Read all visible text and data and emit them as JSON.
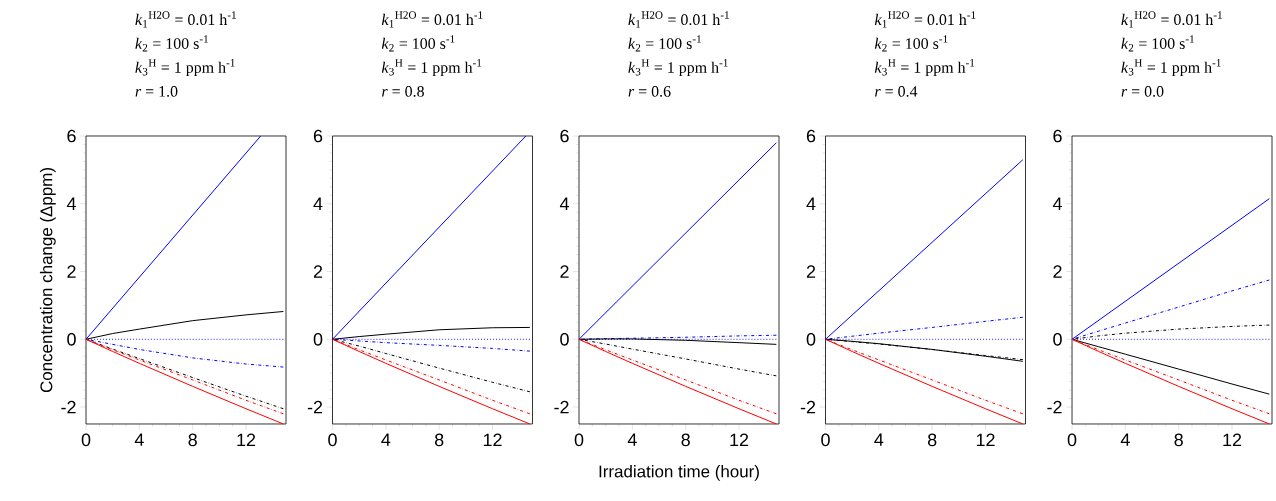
{
  "chart_data": [
    {
      "type": "line",
      "title": "*r* = 1.0",
      "annotations": [
        "*k*$_{1}$$^{H2O}$ = 0.01 h$^{-1}$",
        "*k*$_{2}$ = 100 s$^{-1}$",
        "*k*$_{3}$$^{H}$ = 1 ppm h$^{-1}$"
      ],
      "ylabel": "Concentration change (Δppm)",
      "xlim": [
        0,
        15
      ],
      "ylim": [
        -2.5,
        6
      ],
      "xticks": [
        0,
        4,
        8,
        12
      ],
      "yticks": [
        -2,
        0,
        2,
        4,
        6
      ],
      "x": [
        0,
        2,
        4,
        8,
        12,
        14.8
      ],
      "series": [
        {
          "color": "#0000ff",
          "line_style": "solid",
          "x": [
            0,
            13.1
          ],
          "values": [
            0,
            6
          ]
        },
        {
          "color": "#2222ee",
          "line_style": "dotted",
          "x": [
            0,
            14.8
          ],
          "values": [
            0,
            0
          ]
        },
        {
          "color": "#0000ff",
          "line_style": "dashdot",
          "values": [
            0,
            -0.15,
            -0.3,
            -0.55,
            -0.73,
            -0.82
          ]
        },
        {
          "color": "#000000",
          "line_style": "solid",
          "values": [
            0,
            0.17,
            0.3,
            0.55,
            0.72,
            0.82
          ]
        },
        {
          "color": "#000000",
          "line_style": "dashdot",
          "values": [
            0,
            -0.29,
            -0.57,
            -1.13,
            -1.68,
            -2.05
          ]
        },
        {
          "color": "#ff0000",
          "line_style": "dashdot",
          "values": [
            0,
            -0.31,
            -0.61,
            -1.2,
            -1.8,
            -2.2
          ]
        },
        {
          "color": "#ff0000",
          "line_style": "solid",
          "values": [
            0,
            -0.36,
            -0.71,
            -1.39,
            -2.05,
            -2.5
          ]
        }
      ]
    },
    {
      "type": "line",
      "title": "*r* = 0.8",
      "annotations": [
        "*k*$_{1}$$^{H2O}$ = 0.01 h$^{-1}$",
        "*k*$_{2}$ = 100 s$^{-1}$",
        "*k*$_{3}$$^{H}$ = 1 ppm h$^{-1}$"
      ],
      "xlim": [
        0,
        15
      ],
      "ylim": [
        -2.5,
        6
      ],
      "xticks": [
        0,
        4,
        8,
        12
      ],
      "yticks": [
        -2,
        0,
        2,
        4,
        6
      ],
      "x": [
        0,
        2,
        4,
        8,
        12,
        14.8
      ],
      "series": [
        {
          "color": "#0000ff",
          "line_style": "solid",
          "x": [
            0,
            14.5
          ],
          "values": [
            0,
            6
          ]
        },
        {
          "color": "#2222ee",
          "line_style": "dotted",
          "x": [
            0,
            14.8
          ],
          "values": [
            0,
            0
          ]
        },
        {
          "color": "#0000ff",
          "line_style": "dashdot",
          "values": [
            0,
            -0.05,
            -0.1,
            -0.18,
            -0.27,
            -0.35
          ]
        },
        {
          "color": "#000000",
          "line_style": "solid",
          "values": [
            0,
            0.08,
            0.15,
            0.28,
            0.34,
            0.35
          ]
        },
        {
          "color": "#000000",
          "line_style": "dashdot",
          "values": [
            0,
            -0.2,
            -0.42,
            -0.85,
            -1.27,
            -1.55
          ]
        },
        {
          "color": "#ff0000",
          "line_style": "dashdot",
          "values": [
            0,
            -0.31,
            -0.61,
            -1.2,
            -1.8,
            -2.2
          ]
        },
        {
          "color": "#ff0000",
          "line_style": "solid",
          "values": [
            0,
            -0.36,
            -0.71,
            -1.39,
            -2.05,
            -2.5
          ]
        }
      ]
    },
    {
      "type": "line",
      "title": "*r* = 0.6",
      "annotations": [
        "*k*$_{1}$$^{H2O}$ = 0.01 h$^{-1}$",
        "*k*$_{2}$ = 100 s$^{-1}$",
        "*k*$_{3}$$^{H}$ = 1 ppm h$^{-1}$"
      ],
      "xlabel": "Irradiation time (hour)",
      "xlim": [
        0,
        15
      ],
      "ylim": [
        -2.5,
        6
      ],
      "xticks": [
        0,
        4,
        8,
        12
      ],
      "yticks": [
        -2,
        0,
        2,
        4,
        6
      ],
      "x": [
        0,
        2,
        4,
        8,
        12,
        14.8
      ],
      "series": [
        {
          "color": "#0000ff",
          "line_style": "solid",
          "x": [
            0,
            14.8
          ],
          "values": [
            0,
            5.8
          ]
        },
        {
          "color": "#2222ee",
          "line_style": "dotted",
          "x": [
            0,
            14.8
          ],
          "values": [
            0,
            0
          ]
        },
        {
          "color": "#0000ff",
          "line_style": "dashdot",
          "values": [
            0,
            0.02,
            0.03,
            0.06,
            0.1,
            0.12
          ]
        },
        {
          "color": "#000000",
          "line_style": "solid",
          "values": [
            0,
            0.01,
            0.01,
            -0.03,
            -0.1,
            -0.15
          ]
        },
        {
          "color": "#000000",
          "line_style": "dashdot",
          "values": [
            0,
            -0.14,
            -0.29,
            -0.58,
            -0.88,
            -1.08
          ]
        },
        {
          "color": "#ff0000",
          "line_style": "dashdot",
          "values": [
            0,
            -0.31,
            -0.61,
            -1.2,
            -1.8,
            -2.2
          ]
        },
        {
          "color": "#ff0000",
          "line_style": "solid",
          "values": [
            0,
            -0.36,
            -0.71,
            -1.39,
            -2.05,
            -2.5
          ]
        }
      ]
    },
    {
      "type": "line",
      "title": "*r* = 0.4",
      "annotations": [
        "*k*$_{1}$$^{H2O}$ = 0.01 h$^{-1}$",
        "*k*$_{2}$ = 100 s$^{-1}$",
        "*k*$_{3}$$^{H}$ = 1 ppm h$^{-1}$"
      ],
      "xlim": [
        0,
        15
      ],
      "ylim": [
        -2.5,
        6
      ],
      "xticks": [
        0,
        4,
        8,
        12
      ],
      "yticks": [
        -2,
        0,
        2,
        4,
        6
      ],
      "x": [
        0,
        2,
        4,
        8,
        12,
        14.8
      ],
      "series": [
        {
          "color": "#0000ff",
          "line_style": "solid",
          "x": [
            0,
            14.8
          ],
          "values": [
            0,
            5.3
          ]
        },
        {
          "color": "#2222ee",
          "line_style": "dotted",
          "x": [
            0,
            14.8
          ],
          "values": [
            0,
            0
          ]
        },
        {
          "color": "#0000ff",
          "line_style": "dashdot",
          "values": [
            0,
            0.09,
            0.18,
            0.35,
            0.53,
            0.65
          ]
        },
        {
          "color": "#000000",
          "line_style": "solid",
          "values": [
            0,
            -0.06,
            -0.13,
            -0.3,
            -0.5,
            -0.65
          ]
        },
        {
          "color": "#000000",
          "line_style": "dashdot",
          "values": [
            0,
            -0.07,
            -0.14,
            -0.3,
            -0.48,
            -0.6
          ]
        },
        {
          "color": "#ff0000",
          "line_style": "dashdot",
          "values": [
            0,
            -0.31,
            -0.61,
            -1.2,
            -1.8,
            -2.2
          ]
        },
        {
          "color": "#ff0000",
          "line_style": "solid",
          "values": [
            0,
            -0.36,
            -0.71,
            -1.39,
            -2.05,
            -2.5
          ]
        }
      ]
    },
    {
      "type": "line",
      "title": "*r* = 0.0",
      "annotations": [
        "*k*$_{1}$$^{H2O}$ = 0.01 h$^{-1}$",
        "*k*$_{2}$ = 100 s$^{-1}$",
        "*k*$_{3}$$^{H}$ = 1 ppm h$^{-1}$"
      ],
      "xlim": [
        0,
        15
      ],
      "ylim": [
        -2.5,
        6
      ],
      "xticks": [
        0,
        4,
        8,
        12
      ],
      "yticks": [
        -2,
        0,
        2,
        4,
        6
      ],
      "x": [
        0,
        2,
        4,
        8,
        12,
        14.8
      ],
      "series": [
        {
          "color": "#0000ff",
          "line_style": "solid",
          "x": [
            0,
            14.8
          ],
          "values": [
            0,
            4.15
          ]
        },
        {
          "color": "#2222ee",
          "line_style": "dotted",
          "x": [
            0,
            14.8
          ],
          "values": [
            0,
            0
          ]
        },
        {
          "color": "#0000ff",
          "line_style": "dashdot",
          "values": [
            0,
            0.24,
            0.48,
            0.95,
            1.43,
            1.75
          ]
        },
        {
          "color": "#000000",
          "line_style": "solid",
          "values": [
            0,
            -0.22,
            -0.44,
            -0.88,
            -1.32,
            -1.62
          ]
        },
        {
          "color": "#000000",
          "line_style": "dashdot",
          "values": [
            0,
            0.1,
            0.18,
            0.3,
            0.38,
            0.42
          ]
        },
        {
          "color": "#ff0000",
          "line_style": "dashdot",
          "values": [
            0,
            -0.31,
            -0.61,
            -1.2,
            -1.8,
            -2.2
          ]
        },
        {
          "color": "#ff0000",
          "line_style": "solid",
          "values": [
            0,
            -0.36,
            -0.71,
            -1.39,
            -2.05,
            -2.5
          ]
        }
      ]
    }
  ]
}
